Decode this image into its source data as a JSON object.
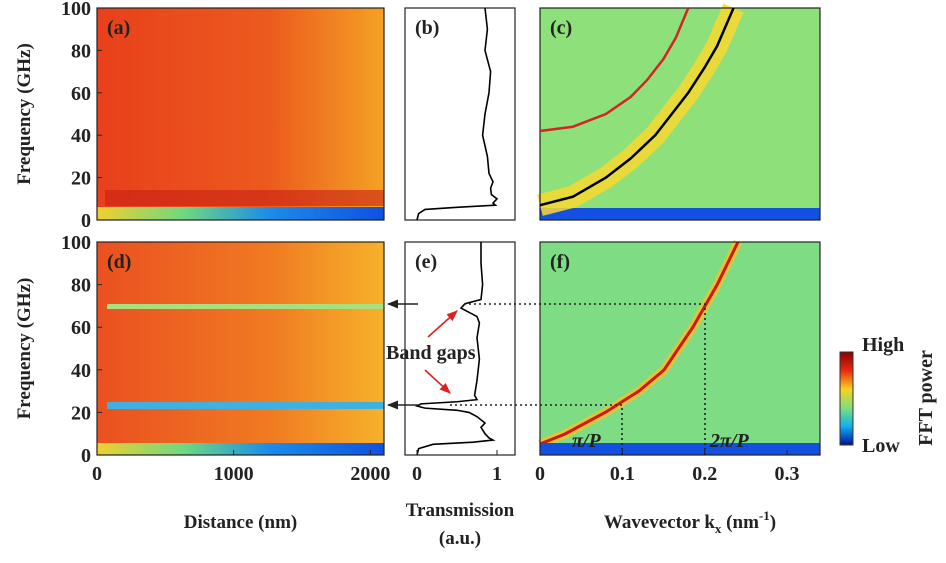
{
  "chart_data": [
    {
      "type": "heatmap",
      "panel_label": "(a)",
      "ylabel": "Frequency (GHz)",
      "xlim": [
        0,
        2100
      ],
      "ylim": [
        0,
        100
      ],
      "yticks": [
        0,
        20,
        40,
        60,
        80,
        100
      ]
    },
    {
      "type": "line",
      "panel_label": "(b)",
      "xlim": [
        -0.15,
        1.225
      ],
      "ylim": [
        0,
        100
      ],
      "series": [
        {
          "color": "#000000",
          "y": [
            0,
            3,
            5,
            6,
            7,
            8,
            10,
            12,
            15,
            18,
            22,
            30,
            40,
            50,
            60,
            70,
            80,
            90,
            100
          ],
          "values": [
            0,
            0.02,
            0.1,
            0.5,
            0.98,
            0.95,
            1.0,
            0.93,
            0.92,
            0.95,
            0.9,
            0.88,
            0.82,
            0.85,
            0.9,
            0.92,
            0.85,
            0.88,
            0.85
          ]
        }
      ]
    },
    {
      "type": "heatmap",
      "panel_label": "(c)",
      "xlim": [
        0,
        0.34
      ],
      "ylim": [
        0,
        100
      ],
      "series": [
        {
          "color": "#d42424",
          "x": [
            0,
            0.04,
            0.08,
            0.11,
            0.13,
            0.15,
            0.165,
            0.18
          ],
          "values": [
            42,
            44,
            50,
            58,
            66,
            76,
            86,
            100
          ]
        },
        {
          "color": "#000000",
          "x": [
            0,
            0.04,
            0.08,
            0.11,
            0.14,
            0.16,
            0.18,
            0.2,
            0.215,
            0.235
          ],
          "values": [
            7,
            11,
            20,
            29,
            40,
            50,
            60,
            72,
            82,
            100
          ]
        }
      ]
    },
    {
      "type": "heatmap",
      "panel_label": "(d)",
      "ylabel": "Frequency (GHz)",
      "xlabel": "Distance (nm)",
      "xlim": [
        0,
        2100
      ],
      "ylim": [
        0,
        100
      ],
      "xticks": [
        0,
        1000,
        2000
      ],
      "yticks": [
        0,
        20,
        40,
        60,
        80,
        100
      ]
    },
    {
      "type": "line",
      "panel_label": "(e)",
      "xlabel": [
        "Transmission",
        "(a.u.)"
      ],
      "xlim": [
        -0.15,
        1.225
      ],
      "ylim": [
        0,
        100
      ],
      "xticks": [
        0,
        1
      ],
      "series": [
        {
          "color": "#000000",
          "y": [
            0,
            3,
            5,
            6,
            7,
            8,
            10,
            13,
            15,
            18,
            20,
            21,
            22,
            23,
            24,
            25,
            26,
            28,
            35,
            45,
            55,
            62,
            65,
            67,
            69,
            71,
            73,
            80,
            90,
            100
          ],
          "values": [
            0,
            0.02,
            0.2,
            0.7,
            0.95,
            0.9,
            0.85,
            0.8,
            0.85,
            0.75,
            0.65,
            0.5,
            0.1,
            0,
            0.05,
            0.5,
            0.75,
            0.72,
            0.75,
            0.78,
            0.75,
            0.78,
            0.75,
            0.65,
            0.55,
            0.6,
            0.8,
            0.82,
            0.8,
            0.8
          ]
        }
      ]
    },
    {
      "type": "heatmap",
      "panel_label": "(f)",
      "xlabel": {
        "text": "Wavevector k",
        "sub": "x",
        "unit": " (nm",
        "sup": "-1",
        "end": ")"
      },
      "xlim": [
        0,
        0.34
      ],
      "ylim": [
        0,
        100
      ],
      "xticks": [
        0,
        0.1,
        0.2,
        0.3
      ]
    }
  ],
  "annotations": {
    "band_gaps": "Band gaps",
    "pi_p": "π/P",
    "two_pi_p": "2π/P"
  },
  "colorbar": {
    "label": "FFT power",
    "high": "High",
    "low": "Low"
  }
}
